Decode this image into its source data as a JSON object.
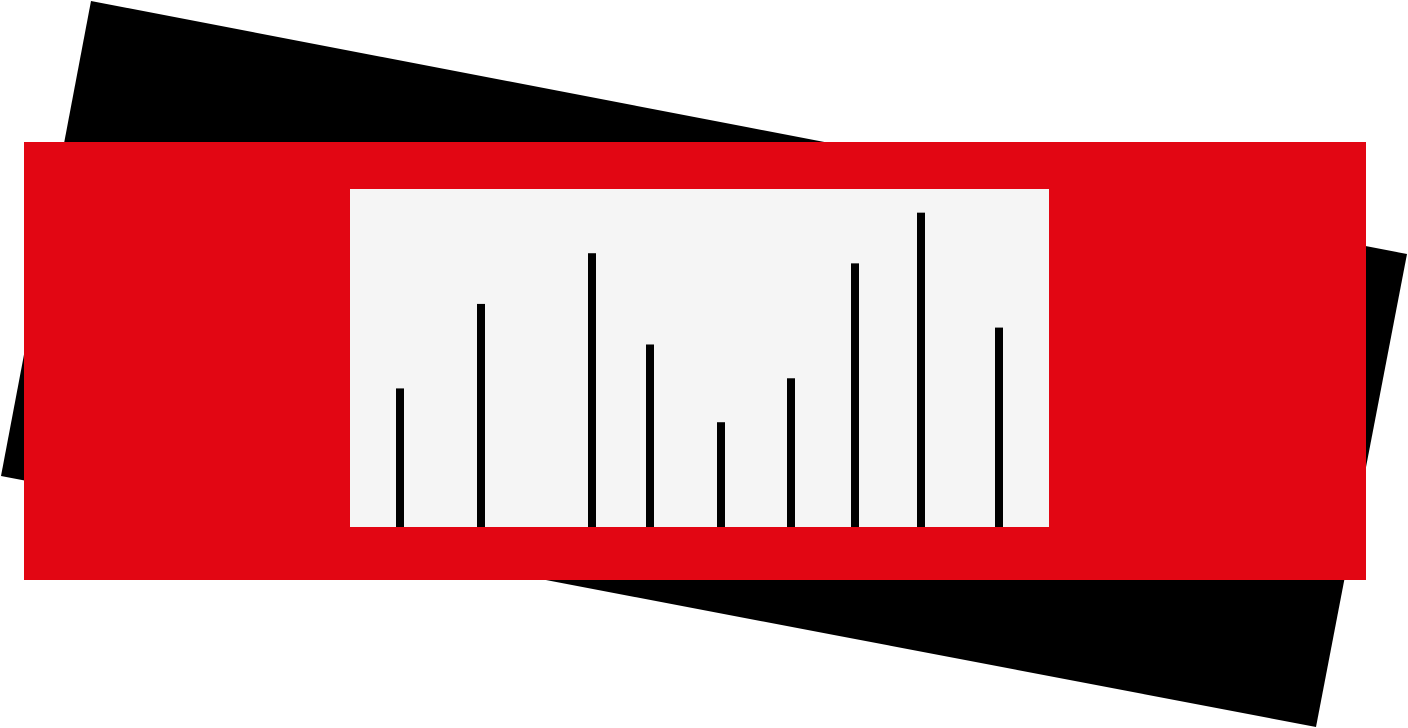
{
  "logo": {
    "colors": {
      "background": "#ffffff",
      "back_card": "#000000",
      "front_card": "#e20613",
      "panel": "#f5f5f5",
      "bars": "#000000"
    },
    "bar_levels": [
      0.41,
      0.66,
      0.81,
      0.54,
      0.31,
      0.44,
      0.78,
      0.93,
      0.59
    ]
  }
}
